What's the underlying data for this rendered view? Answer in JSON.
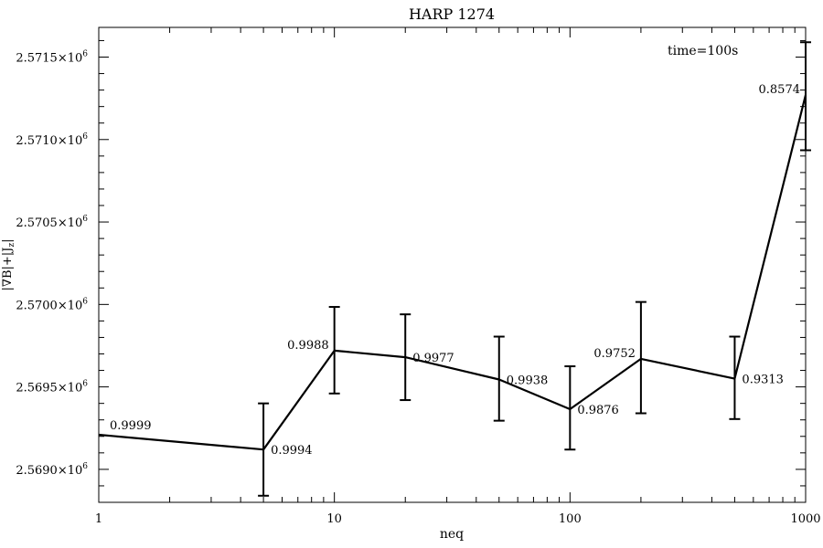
{
  "chart_data": {
    "type": "line",
    "title": "HARP 1274",
    "xlabel": "neq",
    "ylabel": "|∇B|+|J",
    "ylabel_sub": "z",
    "ylabel_tail": "|",
    "x_scale": "log",
    "xlim": [
      1,
      1000
    ],
    "ylim": [
      2568800,
      2571680
    ],
    "annotation": "time=100s",
    "x_ticks": [
      {
        "value": 1,
        "label": "1"
      },
      {
        "value": 10,
        "label": "10"
      },
      {
        "value": 100,
        "label": "100"
      },
      {
        "value": 1000,
        "label": "1000"
      }
    ],
    "y_ticks": [
      {
        "value": 2569000,
        "mantissa": "2.5690×10",
        "exp": "6"
      },
      {
        "value": 2569500,
        "mantissa": "2.5695×10",
        "exp": "6"
      },
      {
        "value": 2570000,
        "mantissa": "2.5700×10",
        "exp": "6"
      },
      {
        "value": 2570500,
        "mantissa": "2.5705×10",
        "exp": "6"
      },
      {
        "value": 2571000,
        "mantissa": "2.5710×10",
        "exp": "6"
      },
      {
        "value": 2571500,
        "mantissa": "2.5715×10",
        "exp": "6"
      }
    ],
    "points": [
      {
        "x": 1,
        "y": 2569210,
        "err_low": null,
        "err_high": null,
        "label": "0.9999",
        "label_pos": "above-right"
      },
      {
        "x": 5,
        "y": 2569120,
        "err_low": 2568840,
        "err_high": 2569400,
        "label": "0.9994",
        "label_pos": "right"
      },
      {
        "x": 10,
        "y": 2569720,
        "err_low": 2569460,
        "err_high": 2569985,
        "label": "0.9988",
        "label_pos": "left"
      },
      {
        "x": 20,
        "y": 2569680,
        "err_low": 2569420,
        "err_high": 2569940,
        "label": "0.9977",
        "label_pos": "right"
      },
      {
        "x": 50,
        "y": 2569545,
        "err_low": 2569295,
        "err_high": 2569805,
        "label": "0.9938",
        "label_pos": "right"
      },
      {
        "x": 100,
        "y": 2569365,
        "err_low": 2569120,
        "err_high": 2569625,
        "label": "0.9876",
        "label_pos": "right"
      },
      {
        "x": 200,
        "y": 2569670,
        "err_low": 2569340,
        "err_high": 2570015,
        "label": "0.9752",
        "label_pos": "left"
      },
      {
        "x": 500,
        "y": 2569550,
        "err_low": 2569305,
        "err_high": 2569805,
        "label": "0.9313",
        "label_pos": "right"
      },
      {
        "x": 1000,
        "y": 2571270,
        "err_low": 2570935,
        "err_high": 2571590,
        "label": "0.8574",
        "label_pos": "left"
      }
    ]
  }
}
